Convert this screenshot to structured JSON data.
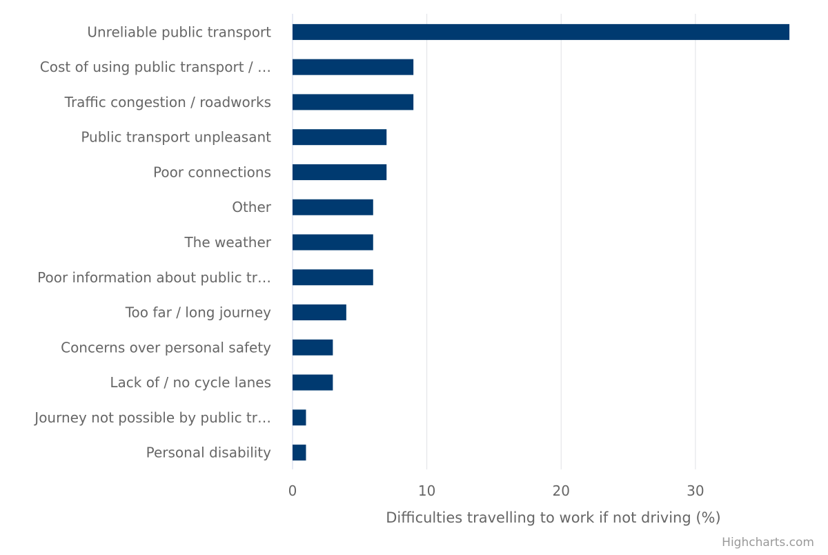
{
  "chart_data": {
    "type": "bar",
    "orientation": "horizontal",
    "categories": [
      "Unreliable public transport",
      "Cost of using public transport / …",
      "Traffic congestion / roadworks",
      "Public transport unpleasant",
      "Poor connections",
      "Other",
      "The weather",
      "Poor information about public tr…",
      "Too far / long journey",
      "Concerns over personal safety",
      "Lack of / no cycle lanes",
      "Journey not possible by public tr…",
      "Personal disability"
    ],
    "values": [
      37,
      9,
      9,
      7,
      7,
      6,
      6,
      6,
      4,
      3,
      3,
      1,
      1
    ],
    "xlabel": "Difficulties travelling to work if not driving (%)",
    "xlim": [
      0,
      39
    ],
    "xticks": [
      "0",
      "10",
      "20",
      "30"
    ],
    "bar_color": "#003a70",
    "grid_color": "#dfe1e5",
    "grid": true,
    "legend": "none"
  },
  "credits": "Highcharts.com"
}
